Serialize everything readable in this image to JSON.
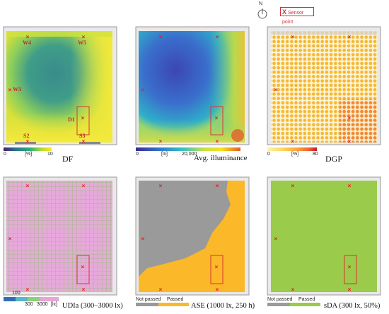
{
  "legend": {
    "marker": "X",
    "text": "Sensor point"
  },
  "north_label": "N",
  "panels": [
    {
      "id": "df",
      "title": "DF",
      "colorbar": {
        "ticks": [
          "0",
          "[%]",
          "10"
        ],
        "colors": [
          "#481f70",
          "#2c728e",
          "#29af7f",
          "#b8de29",
          "#fde725"
        ]
      },
      "sensor_labels": [
        "W4",
        "W5",
        "W3",
        "D1",
        "S2",
        "S3"
      ]
    },
    {
      "id": "avg-illuminance",
      "title": "Avg. illuminance",
      "colorbar": {
        "ticks": [
          "0",
          "[lx]",
          "20,000"
        ],
        "colors": [
          "#3b2a98",
          "#2f7fcf",
          "#33c3c1",
          "#c8e04a",
          "#f5e21e",
          "#e45a2a"
        ]
      }
    },
    {
      "id": "dgp",
      "title": "DGP",
      "colorbar": {
        "ticks": [
          "0",
          "[%]",
          "80"
        ],
        "colors": [
          "#fff3b0",
          "#fed85a",
          "#fca43c",
          "#f0602f",
          "#c0142b"
        ]
      }
    },
    {
      "id": "udia",
      "title": "UDIa (300–3000 lx)",
      "colorbar": {
        "ticks": [
          "100",
          "300",
          "3000",
          "[lx]"
        ],
        "colors": [
          "#2d6fb4",
          "#58b7c9",
          "#8bd07a",
          "#e9a3d8"
        ]
      }
    },
    {
      "id": "ase",
      "title": "ASE (1000 lx, 250 h)",
      "colorbar": {
        "labels": [
          "Not passed",
          "Passed"
        ],
        "colors": [
          "#999999",
          "#fbb829"
        ]
      }
    },
    {
      "id": "sda",
      "title": "sDA (300 lx, 50%)",
      "colorbar": {
        "labels": [
          "Not passed",
          "Passed"
        ],
        "colors": [
          "#9b9b9b",
          "#9acb4a"
        ]
      }
    }
  ]
}
